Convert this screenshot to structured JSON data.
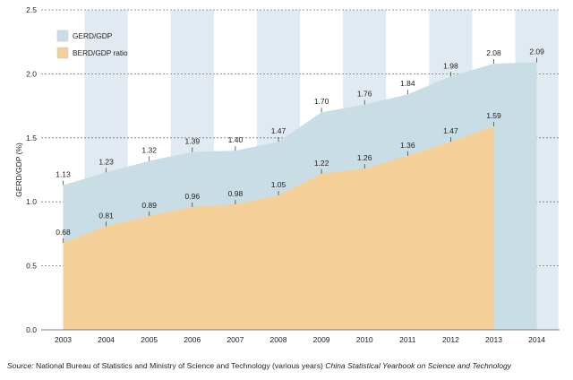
{
  "chart_data": {
    "type": "area",
    "title": "",
    "xlabel": "",
    "ylabel": "GERD/GDP (%)",
    "ylim": [
      0,
      2.5
    ],
    "yticks": [
      "0.0",
      "0.5",
      "1.0",
      "1.5",
      "2.0",
      "2.5"
    ],
    "grid": true,
    "legend_position": "top-left",
    "categories": [
      "2003",
      "2004",
      "2005",
      "2006",
      "2007",
      "2008",
      "2009",
      "2010",
      "2011",
      "2012",
      "2013",
      "2014"
    ],
    "series": [
      {
        "name": "GERD/GDP",
        "color": "#c9dde5",
        "values": [
          1.13,
          1.23,
          1.32,
          1.39,
          1.4,
          1.47,
          1.7,
          1.76,
          1.84,
          1.98,
          2.08,
          2.09
        ],
        "labels": [
          "1.13",
          "1.23",
          "1.32",
          "1.39",
          "1.40",
          "1.47",
          "1.70",
          "1.76",
          "1.84",
          "1.98",
          "2.08",
          "2.09"
        ]
      },
      {
        "name": "BERD/GDP ratio",
        "color": "#f4cf98",
        "values": [
          0.68,
          0.81,
          0.89,
          0.96,
          0.98,
          1.05,
          1.22,
          1.26,
          1.36,
          1.47,
          1.59,
          null
        ],
        "labels": [
          "0.68",
          "0.81",
          "0.89",
          "0.96",
          "0.98",
          "1.05",
          "1.22",
          "1.26",
          "1.36",
          "1.47",
          "1.59",
          ""
        ]
      }
    ],
    "stripe_color": "#e1e9f1"
  },
  "source": {
    "prefix": "Source:",
    "text": " National Bureau of Statistics and Ministry of Science and Technology (various years) ",
    "italic": "China Statistical Yearbook on Science and Technology"
  }
}
